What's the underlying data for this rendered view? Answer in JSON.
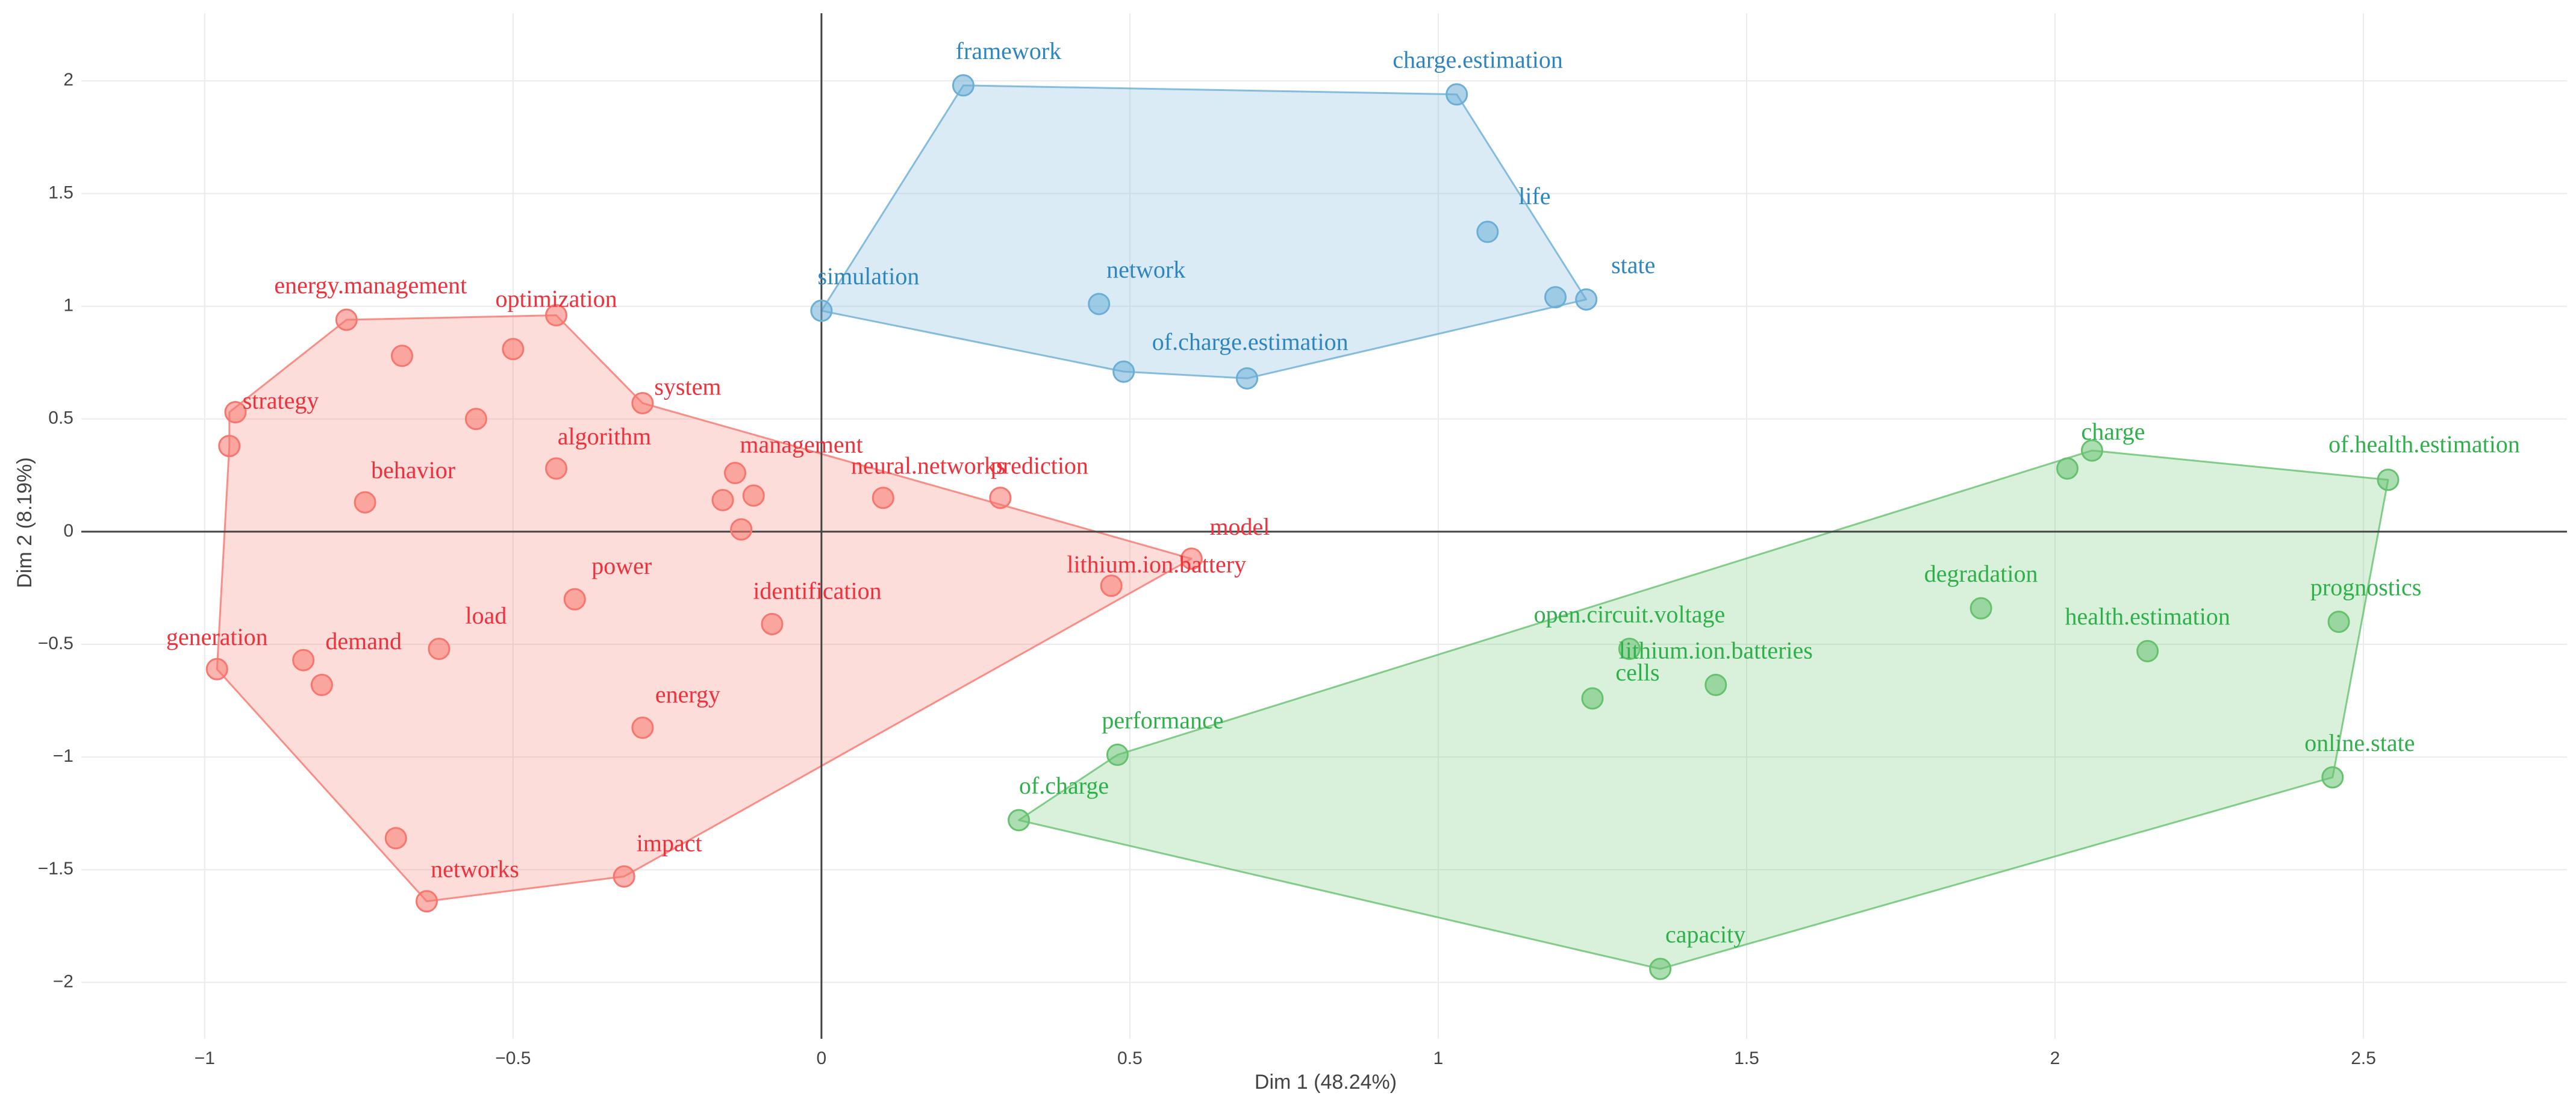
{
  "chart_data": {
    "type": "scatter",
    "title": "",
    "xlabel": "Dim 1 (48.24%)",
    "ylabel": "Dim 2 (8.19%)",
    "xlim": [
      -1.2,
      2.83
    ],
    "ylim": [
      -2.25,
      2.3
    ],
    "xticks": [
      -1,
      -0.5,
      0,
      0.5,
      1,
      1.5,
      2,
      2.5
    ],
    "xtick_labels": [
      "−1",
      "−0.5",
      "0",
      "0.5",
      "1",
      "1.5",
      "2",
      "2.5"
    ],
    "yticks": [
      -2,
      -1.5,
      -1,
      -0.5,
      0,
      0.5,
      1,
      1.5,
      2
    ],
    "ytick_labels": [
      "−2",
      "−1.5",
      "−1",
      "−0.5",
      "0",
      "0.5",
      "1",
      "1.5",
      "2"
    ],
    "grid": true,
    "clusters": [
      {
        "name": "cluster-1",
        "color": "#f8766d",
        "hull": [
          [
            -0.96,
            0.53
          ],
          [
            -0.77,
            0.94
          ],
          [
            -0.43,
            0.96
          ],
          [
            -0.29,
            0.57
          ],
          [
            0.6,
            -0.12
          ],
          [
            -0.32,
            -1.53
          ],
          [
            -0.64,
            -1.64
          ],
          [
            -0.98,
            -0.61
          ],
          [
            -0.96,
            0.38
          ]
        ],
        "points": [
          {
            "label": "energy.management",
            "x": -0.77,
            "y": 0.94
          },
          {
            "label": "optimization",
            "x": -0.43,
            "y": 0.96
          },
          {
            "label": "",
            "x": -0.68,
            "y": 0.78
          },
          {
            "label": "",
            "x": -0.5,
            "y": 0.81
          },
          {
            "label": "strategy",
            "x": -0.95,
            "y": 0.53
          },
          {
            "label": "",
            "x": -0.96,
            "y": 0.38
          },
          {
            "label": "system",
            "x": -0.29,
            "y": 0.57
          },
          {
            "label": "",
            "x": -0.56,
            "y": 0.5
          },
          {
            "label": "algorithm",
            "x": -0.43,
            "y": 0.28
          },
          {
            "label": "behavior",
            "x": -0.74,
            "y": 0.13
          },
          {
            "label": "management",
            "x": -0.14,
            "y": 0.26
          },
          {
            "label": "",
            "x": -0.16,
            "y": 0.14
          },
          {
            "label": "",
            "x": -0.11,
            "y": 0.16
          },
          {
            "label": "",
            "x": -0.13,
            "y": 0.01
          },
          {
            "label": "neural.networks",
            "x": 0.1,
            "y": 0.15
          },
          {
            "label": "prediction",
            "x": 0.29,
            "y": 0.15
          },
          {
            "label": "model",
            "x": 0.6,
            "y": -0.12
          },
          {
            "label": "lithium.ion.battery",
            "x": 0.47,
            "y": -0.24
          },
          {
            "label": "power",
            "x": -0.4,
            "y": -0.3
          },
          {
            "label": "identification",
            "x": -0.08,
            "y": -0.41
          },
          {
            "label": "load",
            "x": -0.62,
            "y": -0.52
          },
          {
            "label": "generation",
            "x": -0.98,
            "y": -0.61
          },
          {
            "label": "demand",
            "x": -0.84,
            "y": -0.57
          },
          {
            "label": "",
            "x": -0.81,
            "y": -0.68
          },
          {
            "label": "energy",
            "x": -0.29,
            "y": -0.87
          },
          {
            "label": "",
            "x": -0.69,
            "y": -1.36
          },
          {
            "label": "impact",
            "x": -0.32,
            "y": -1.53
          },
          {
            "label": "networks",
            "x": -0.64,
            "y": -1.64
          }
        ]
      },
      {
        "name": "cluster-2",
        "color": "#6baed6",
        "hull": [
          [
            0.23,
            1.98
          ],
          [
            1.03,
            1.94
          ],
          [
            1.24,
            1.03
          ],
          [
            0.69,
            0.68
          ],
          [
            0.49,
            0.71
          ],
          [
            0.0,
            0.98
          ]
        ],
        "points": [
          {
            "label": "framework",
            "x": 0.23,
            "y": 1.98
          },
          {
            "label": "charge.estimation",
            "x": 1.03,
            "y": 1.94
          },
          {
            "label": "life",
            "x": 1.08,
            "y": 1.33
          },
          {
            "label": "state",
            "x": 1.24,
            "y": 1.03
          },
          {
            "label": "",
            "x": 1.19,
            "y": 1.04
          },
          {
            "label": "simulation",
            "x": 0.0,
            "y": 0.98
          },
          {
            "label": "network",
            "x": 0.45,
            "y": 1.01
          },
          {
            "label": "of.charge.estimation",
            "x": 0.49,
            "y": 0.71
          },
          {
            "label": "",
            "x": 0.69,
            "y": 0.68
          }
        ]
      },
      {
        "name": "cluster-3",
        "color": "#66c26f",
        "hull": [
          [
            2.06,
            0.36
          ],
          [
            2.54,
            0.23
          ],
          [
            2.45,
            -1.09
          ],
          [
            1.36,
            -1.94
          ],
          [
            0.32,
            -1.28
          ],
          [
            0.48,
            -0.99
          ]
        ],
        "points": [
          {
            "label": "charge",
            "x": 2.06,
            "y": 0.36
          },
          {
            "label": "",
            "x": 2.02,
            "y": 0.28
          },
          {
            "label": "of.health.estimation",
            "x": 2.54,
            "y": 0.23
          },
          {
            "label": "degradation",
            "x": 1.88,
            "y": -0.34
          },
          {
            "label": "prognostics",
            "x": 2.46,
            "y": -0.4
          },
          {
            "label": "health.estimation",
            "x": 2.15,
            "y": -0.53
          },
          {
            "label": "open.circuit.voltage",
            "x": 1.31,
            "y": -0.52
          },
          {
            "label": "lithium.ion.batteries",
            "x": 1.45,
            "y": -0.68
          },
          {
            "label": "cells",
            "x": 1.25,
            "y": -0.74
          },
          {
            "label": "performance",
            "x": 0.48,
            "y": -0.99
          },
          {
            "label": "online.state",
            "x": 2.45,
            "y": -1.09
          },
          {
            "label": "of.charge",
            "x": 0.32,
            "y": -1.28
          },
          {
            "label": "capacity",
            "x": 1.36,
            "y": -1.94
          }
        ]
      }
    ]
  },
  "label_colors": {
    "cluster-1": "#f0303a",
    "cluster-2": "#2e86c1",
    "cluster-3": "#2eb04a"
  }
}
